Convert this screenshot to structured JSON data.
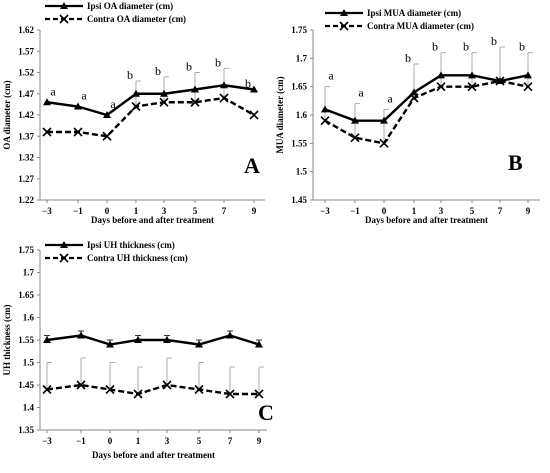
{
  "chart_data": [
    {
      "panel": "A",
      "type": "line",
      "x": [
        "−3",
        "−1",
        "0",
        "1",
        "3",
        "5",
        "7",
        "9"
      ],
      "ylabel": "OA diameter (cm)",
      "xlabel": "Days before and after treatment",
      "ylim": [
        1.22,
        1.62
      ],
      "yticks": [
        "1.22",
        "1.27",
        "1.32",
        "1.37",
        "1.42",
        "1.47",
        "1.52",
        "1.57",
        "1.62"
      ],
      "legend_position": "top-left",
      "series": [
        {
          "name": "Ipsi OA diameter (cm)",
          "style": "solid",
          "marker": "triangle",
          "values": [
            1.45,
            1.44,
            1.42,
            1.47,
            1.47,
            1.48,
            1.49,
            1.48
          ]
        },
        {
          "name": "Contra OA diameter (cm)",
          "style": "dashed",
          "marker": "x",
          "values": [
            1.38,
            1.38,
            1.37,
            1.44,
            1.45,
            1.45,
            1.46,
            1.42
          ]
        }
      ],
      "error_bars": [
        0,
        0,
        0,
        0.03,
        0.04,
        0.04,
        0.04,
        0
      ],
      "sig_labels": [
        "a",
        "a",
        "a",
        "b",
        "b",
        "b",
        "b",
        "b"
      ]
    },
    {
      "panel": "B",
      "type": "line",
      "x": [
        "−3",
        "−1",
        "0",
        "1",
        "3",
        "5",
        "7",
        "9"
      ],
      "ylabel": "MUA diameter (cm)",
      "xlabel": "Days before and after treatment",
      "ylim": [
        1.45,
        1.75
      ],
      "yticks": [
        "1.45",
        "1.5",
        "1.55",
        "1.6",
        "1.65",
        "1.7",
        "1.75"
      ],
      "legend_position": "top-left",
      "series": [
        {
          "name": "Ipsi MUA diameter (cm)",
          "style": "solid",
          "marker": "triangle",
          "values": [
            1.61,
            1.59,
            1.59,
            1.64,
            1.67,
            1.67,
            1.66,
            1.67
          ]
        },
        {
          "name": "Contra MUA diameter (cm)",
          "style": "dashed",
          "marker": "x",
          "values": [
            1.59,
            1.56,
            1.55,
            1.63,
            1.65,
            1.65,
            1.66,
            1.65
          ]
        }
      ],
      "error_bars": [
        0.04,
        0.03,
        0.02,
        0.05,
        0.04,
        0.04,
        0.06,
        0.04
      ],
      "sig_labels": [
        "a",
        "a",
        "a",
        "b",
        "b",
        "b",
        "b",
        "b"
      ]
    },
    {
      "panel": "C",
      "type": "line",
      "x": [
        "−3",
        "−1",
        "0",
        "1",
        "3",
        "5",
        "7",
        "9"
      ],
      "ylabel": "UH thickness (cm)",
      "xlabel": "Days before and after treatment",
      "ylim": [
        1.35,
        1.75
      ],
      "yticks": [
        "1.35",
        "1.4",
        "1.45",
        "1.5",
        "1.55",
        "1.6",
        "1.65",
        "1.7",
        "1.75"
      ],
      "legend_position": "top-left",
      "series": [
        {
          "name": "Ipsi  UH thickness (cm)",
          "style": "solid",
          "marker": "triangle",
          "values": [
            1.55,
            1.56,
            1.54,
            1.55,
            1.55,
            1.54,
            1.56,
            1.54
          ]
        },
        {
          "name": "Contra UH thickness (cm)",
          "style": "dashed",
          "marker": "x",
          "values": [
            1.44,
            1.45,
            1.44,
            1.43,
            1.45,
            1.44,
            1.43,
            1.43
          ]
        }
      ],
      "error_bars_upper": [
        0.01,
        0.01,
        0.01,
        0.01,
        0.01,
        0.01,
        0.01,
        0.01
      ],
      "error_bars_lower": [
        0.06,
        0.06,
        0.06,
        0.06,
        0.06,
        0.06,
        0.06,
        0.06
      ],
      "sig_labels": []
    }
  ],
  "colors": {
    "line": "#000000",
    "axis": "#888888",
    "background": "#ffffff"
  }
}
